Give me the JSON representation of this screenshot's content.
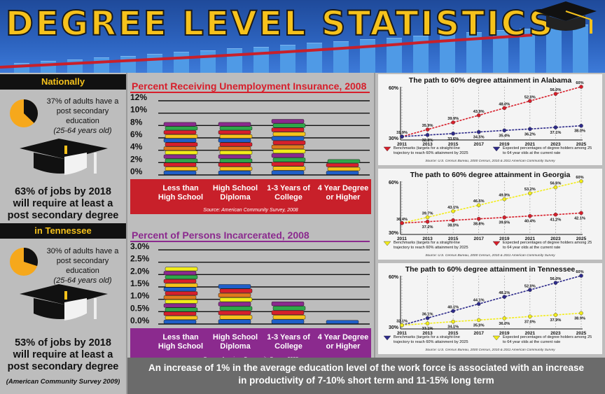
{
  "header": {
    "title": "DEGREE LEVEL STATISTICS"
  },
  "nationally": {
    "banner": "Nationally",
    "stat_line1": "37% of adults have a",
    "stat_line2": "post secondary",
    "stat_line3": "education",
    "stat_line4": "(25-64 years old)",
    "pie_percent": 37,
    "jobs_line1": "63% of jobs by 2018",
    "jobs_line2": "will require at least a",
    "jobs_line3": "post secondary degree"
  },
  "tennessee": {
    "banner": "in Tennessee",
    "stat_line1": "30% of adults have a",
    "stat_line2": "post secondary",
    "stat_line3": "education",
    "stat_line4": "(25-64 years old)",
    "pie_percent": 30,
    "jobs_line1": "53% of jobs by 2018",
    "jobs_line2": "will require at least a",
    "jobs_line3": "post secondary degree",
    "source": "(American Community Survey 2009)"
  },
  "footer": {
    "line1": "An increase of 1% in the average education level of the work force is associated with an increase",
    "line2": "in productivity of 7-10% short term and 11-15% long term"
  },
  "colors": {
    "gold": "#f6c21c",
    "red": "#d71f2b",
    "purple": "#8b2a8e",
    "navy": "#2d2a8a",
    "yellow": "#f2ec1a",
    "blue_header": "#2d64c0"
  },
  "chart_data": [
    {
      "type": "bar",
      "title": "Percent Receiving Unemployment Insurance, 2008",
      "categories": [
        "Less than High School",
        "High School Diploma",
        "1-3 Years of College",
        "4 Year Degree or Higher"
      ],
      "category_lines": [
        [
          "Less than",
          "High School"
        ],
        [
          "High School",
          "Diploma"
        ],
        [
          "1-3 Years of",
          "College"
        ],
        [
          "4 Year Degree",
          "or Higher"
        ]
      ],
      "values": [
        8.5,
        8.5,
        9.0,
        2.5
      ],
      "yticks": [
        "0%",
        "2%",
        "4%",
        "6%",
        "8%",
        "10%",
        "12%"
      ],
      "ylim": [
        0,
        12
      ],
      "source": "Source: American Community Survey, 2008"
    },
    {
      "type": "bar",
      "title": "Percent of Persons Incarcerated, 2008",
      "categories": [
        "Less than High School",
        "High School Diploma",
        "1-3 Years of College",
        "4 Year Degree or Higher"
      ],
      "category_lines": [
        [
          "Less than",
          "High School"
        ],
        [
          "High School",
          "Diploma"
        ],
        [
          "1-3 Years of",
          "College"
        ],
        [
          "4 Year Degree",
          "or Higher"
        ]
      ],
      "values": [
        2.3,
        1.6,
        0.9,
        0.15
      ],
      "yticks": [
        "0.0%",
        "0.5%",
        "1.0%",
        "1.5%",
        "2.0%",
        "2.5%",
        "3.0%"
      ],
      "ylim": [
        0,
        3
      ],
      "source": "Source: American Community Survey, 2008"
    },
    {
      "type": "line",
      "title": "The path to 60% degree attainment in Alabama",
      "x": [
        "2011",
        "2013",
        "2015",
        "2017",
        "2019",
        "2021",
        "2023",
        "2025"
      ],
      "ylim": [
        30,
        60
      ],
      "ytick_labels": [
        "30%",
        "60%"
      ],
      "series": [
        {
          "values": [
            31.9,
            35.9,
            39.9,
            43.9,
            48.0,
            52.0,
            56.0,
            60
          ],
          "labels": [
            "31.9%",
            "35.9%",
            "39.9%",
            "43.9%",
            "48.0%",
            "52.0%",
            "56.0%",
            "60%"
          ]
        },
        {
          "values": [
            31.9,
            32.8,
            33.6,
            34.5,
            35.4,
            36.2,
            37.1,
            38.0
          ],
          "labels": [
            "",
            "32.8%",
            "33.6%",
            "34.5%",
            "35.4%",
            "36.2%",
            "37.1%",
            "38.0%"
          ]
        }
      ],
      "legend": [
        "Benchmarks (targets for a straight-line trajectory to reach 60% attainment by 2025",
        "Expected percentages of degree holders among 25 to 64 year olds at the current rate"
      ],
      "source": "Source: U.S. Census Bureau, 2000 Census, 2010 & 2011 American Community Survey"
    },
    {
      "type": "line",
      "title": "The path to 60% degree attainment in Georgia",
      "x": [
        "2011",
        "2013",
        "2015",
        "2017",
        "2019",
        "2021",
        "2023",
        "2025"
      ],
      "ylim": [
        30,
        60
      ],
      "ytick_labels": [
        "30%",
        "60%"
      ],
      "series": [
        {
          "values": [
            36.4,
            39.7,
            43.1,
            46.5,
            49.9,
            53.2,
            56.6,
            60
          ],
          "labels": [
            "36.4%",
            "39.7%",
            "43.1%",
            "46.5%",
            "49.9%",
            "53.2%",
            "56.6%",
            "60%"
          ]
        },
        {
          "values": [
            36.4,
            37.2,
            38.0,
            38.8,
            39.6,
            40.4,
            41.2,
            42.1
          ],
          "labels": [
            "",
            "37.2%",
            "38.0%",
            "38.8%",
            "39.6%",
            "40.4%",
            "41.2%",
            "42.1%"
          ]
        }
      ],
      "legend": [
        "Benchmarks (targets for a straight-line trajectory to reach 60% attainment by 2025",
        "Expected percentages of degree holders among 25 to 64 year olds at the current rate"
      ],
      "source": "Source: U.S. Census Bureau, 2000 Census, 2010 & 2011 American Community Survey"
    },
    {
      "type": "line",
      "title": "The path to 60% degree attainment in Tennessee",
      "x": [
        "2011",
        "2013",
        "2015",
        "2017",
        "2019",
        "2021",
        "2023",
        "2025"
      ],
      "ylim": [
        30,
        60
      ],
      "ytick_labels": [
        "30%",
        "60%"
      ],
      "series": [
        {
          "values": [
            32.1,
            36.1,
            40.1,
            44.1,
            48.1,
            52.0,
            56.0,
            60
          ],
          "labels": [
            "32.1%",
            "36.1%",
            "40.1%",
            "44.1%",
            "48.1%",
            "52.0%",
            "56.0%",
            "60%"
          ]
        },
        {
          "values": [
            32.1,
            33.1,
            34.1,
            35.0,
            36.0,
            37.0,
            37.9,
            38.9
          ],
          "labels": [
            "",
            "33.1%",
            "34.1%",
            "35.0%",
            "36.0%",
            "37.0%",
            "37.9%",
            "38.9%"
          ]
        }
      ],
      "legend": [
        "Benchmarks (targets for a straight-line trajectory to reach 60% attainment by 2025",
        "Expected percentages of degree holders among 25 to 64 year olds at the current rate"
      ],
      "source": "Source: U.S. Census Bureau, 2000 Census, 2010 & 2011 American Community Survey"
    }
  ]
}
